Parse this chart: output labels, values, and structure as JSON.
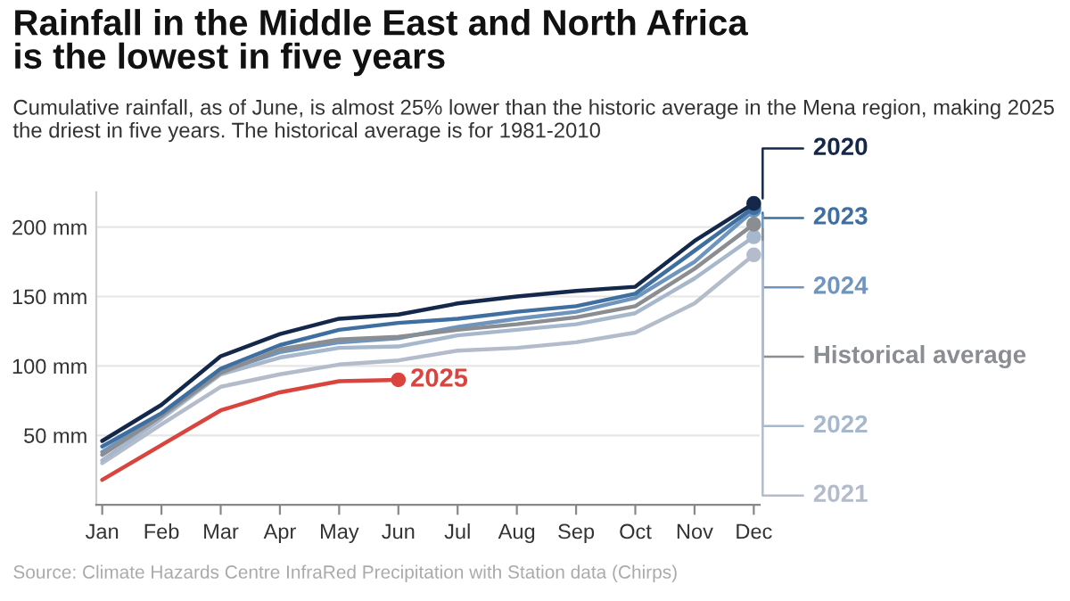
{
  "chart_data": {
    "type": "line",
    "title": "Rainfall in the Middle East and North Africa\nis the lowest in five years",
    "subtitle": "Cumulative rainfall, as of June, is almost 25% lower than the historic average in the Mena region, making 2025 the driest in five years. The historical average is for 1981-2010",
    "categories": [
      "Jan",
      "Feb",
      "Mar",
      "Apr",
      "May",
      "Jun",
      "Jul",
      "Aug",
      "Sep",
      "Oct",
      "Nov",
      "Dec"
    ],
    "series": [
      {
        "name": "2021",
        "color": "#b4bccb",
        "values": [
          30,
          58,
          85,
          94,
          101,
          104,
          111,
          113,
          117,
          124,
          145,
          180
        ]
      },
      {
        "name": "2022",
        "color": "#a7b8cc",
        "values": [
          32,
          62,
          94,
          106,
          113,
          114,
          122,
          126,
          130,
          138,
          163,
          193
        ]
      },
      {
        "name": "2024",
        "color": "#6f95bf",
        "values": [
          38,
          65,
          96,
          110,
          117,
          120,
          128,
          134,
          139,
          149,
          175,
          212
        ]
      },
      {
        "name": "Historical average",
        "color": "#8a8d91",
        "values": [
          36,
          64,
          95,
          112,
          119,
          121,
          126,
          130,
          135,
          143,
          170,
          202
        ]
      },
      {
        "name": "2023",
        "color": "#3e6fa0",
        "values": [
          42,
          66,
          98,
          115,
          126,
          131,
          134,
          139,
          143,
          152,
          183,
          214
        ]
      },
      {
        "name": "2020",
        "color": "#14284b",
        "values": [
          46,
          72,
          107,
          123,
          134,
          137,
          145,
          150,
          154,
          157,
          190,
          217
        ]
      },
      {
        "name": "2025",
        "color": "#d9453e",
        "values": [
          18,
          43,
          68,
          81,
          89,
          90,
          null,
          null,
          null,
          null,
          null,
          null
        ]
      }
    ],
    "ylim": [
      0,
      225
    ],
    "yticks": [
      {
        "value": 50,
        "label": "50 mm"
      },
      {
        "value": 100,
        "label": "100 mm"
      },
      {
        "value": 150,
        "label": "150 mm"
      },
      {
        "value": 200,
        "label": "200 mm"
      }
    ],
    "grid": "y",
    "legend": "right",
    "annotations": [
      "Source: Climate Hazards Centre InfraRed Precipitation with Station data (Chirps)"
    ]
  }
}
